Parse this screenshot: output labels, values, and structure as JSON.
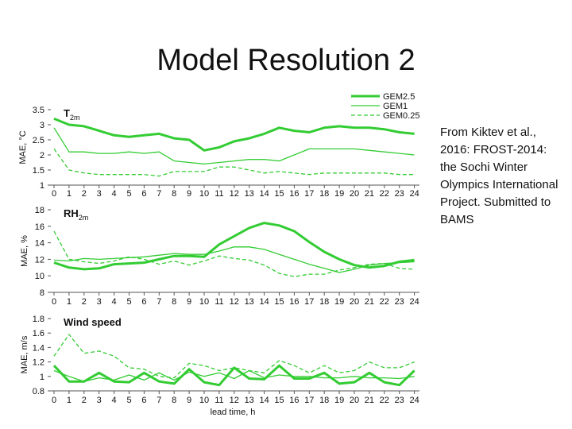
{
  "slide": {
    "title": "Model Resolution 2",
    "caption": "From Kiktev et al., 2016: FROST-2014: the Sochi Winter Olympics International Project. Submitted to BAMS"
  },
  "chart_data": {
    "type": "line",
    "x": [
      0,
      1,
      2,
      3,
      4,
      5,
      6,
      7,
      8,
      9,
      10,
      11,
      12,
      13,
      14,
      15,
      16,
      17,
      18,
      19,
      20,
      21,
      22,
      23,
      24
    ],
    "xlabel": "lead time, h",
    "legend": {
      "placement": "top-right",
      "entries": [
        "GEM2.5",
        "GEM1",
        "GEM0.25"
      ]
    },
    "color": "#33cc33",
    "panels": [
      {
        "title": "T",
        "title_sub": "2m",
        "ylabel": "MAE, °C",
        "ylim": [
          1,
          3.5
        ],
        "yticks": [
          "1",
          "1.5",
          "2",
          "2.5",
          "3",
          "3.5"
        ],
        "series": [
          {
            "name": "GEM2.5",
            "style": "thick",
            "values": [
              3.2,
              3.0,
              2.95,
              2.8,
              2.65,
              2.6,
              2.65,
              2.7,
              2.55,
              2.5,
              2.15,
              2.25,
              2.45,
              2.55,
              2.7,
              2.9,
              2.8,
              2.75,
              2.9,
              2.95,
              2.9,
              2.9,
              2.85,
              2.75,
              2.7
            ]
          },
          {
            "name": "GEM1",
            "style": "thin",
            "values": [
              2.9,
              2.1,
              2.1,
              2.05,
              2.05,
              2.1,
              2.05,
              2.1,
              1.8,
              1.75,
              1.7,
              1.75,
              1.8,
              1.85,
              1.85,
              1.8,
              2.0,
              2.2,
              2.2,
              2.2,
              2.2,
              2.15,
              2.1,
              2.05,
              2.0
            ]
          },
          {
            "name": "GEM0.25",
            "style": "dashed",
            "values": [
              2.2,
              1.5,
              1.4,
              1.35,
              1.35,
              1.35,
              1.35,
              1.3,
              1.45,
              1.45,
              1.45,
              1.6,
              1.6,
              1.5,
              1.4,
              1.45,
              1.4,
              1.35,
              1.4,
              1.4,
              1.4,
              1.4,
              1.4,
              1.35,
              1.35
            ]
          }
        ]
      },
      {
        "title": "RH",
        "title_sub": "2m",
        "ylabel": "MAE, %",
        "ylim": [
          8,
          18
        ],
        "yticks": [
          "8",
          "10",
          "12",
          "14",
          "16",
          "18"
        ],
        "series": [
          {
            "name": "GEM2.5",
            "style": "thick",
            "values": [
              11.6,
              11.0,
              10.8,
              10.9,
              11.4,
              11.5,
              11.6,
              12.0,
              12.4,
              12.4,
              12.3,
              13.8,
              14.8,
              15.8,
              16.4,
              16.1,
              15.4,
              14.1,
              12.9,
              12.0,
              11.3,
              11.0,
              11.2,
              11.7,
              11.9
            ]
          },
          {
            "name": "GEM1",
            "style": "thin",
            "values": [
              11.9,
              11.8,
              12.1,
              12.0,
              12.1,
              12.2,
              12.3,
              12.5,
              12.7,
              12.6,
              12.6,
              13.0,
              13.5,
              13.5,
              13.2,
              12.6,
              12.0,
              11.4,
              10.9,
              10.4,
              10.8,
              11.3,
              11.5,
              11.6,
              11.7
            ]
          },
          {
            "name": "GEM0.25",
            "style": "dashed",
            "values": [
              15.4,
              12.0,
              11.7,
              11.5,
              11.8,
              12.3,
              12.0,
              11.4,
              11.8,
              11.3,
              11.8,
              12.4,
              12.1,
              11.9,
              11.3,
              10.3,
              9.9,
              10.2,
              10.2,
              10.7,
              11.0,
              11.4,
              11.5,
              10.9,
              10.8
            ]
          }
        ]
      },
      {
        "title": "Wind speed",
        "title_sub": "",
        "ylabel": "MAE, m/s",
        "ylim": [
          0.8,
          1.8
        ],
        "yticks": [
          "0.8",
          "1",
          "1.2",
          "1.4",
          "1.6",
          "1.8"
        ],
        "series": [
          {
            "name": "GEM2.5",
            "style": "thick",
            "values": [
              1.15,
              0.93,
              0.93,
              1.05,
              0.93,
              0.92,
              1.05,
              0.93,
              0.9,
              1.1,
              0.92,
              0.88,
              1.12,
              0.97,
              0.96,
              1.15,
              0.97,
              0.97,
              1.05,
              0.9,
              0.92,
              1.05,
              0.92,
              0.88,
              1.08
            ]
          },
          {
            "name": "GEM1",
            "style": "thin",
            "values": [
              1.08,
              1.0,
              0.93,
              0.98,
              0.95,
              1.02,
              0.95,
              1.05,
              0.95,
              1.06,
              1.0,
              1.05,
              0.97,
              1.08,
              0.98,
              1.02,
              1.0,
              1.0,
              0.98,
              0.98,
              1.0,
              0.98,
              0.98,
              0.97,
              1.0
            ]
          },
          {
            "name": "GEM0.25",
            "style": "dashed",
            "values": [
              1.28,
              1.58,
              1.32,
              1.35,
              1.28,
              1.12,
              1.1,
              1.0,
              0.98,
              1.18,
              1.15,
              1.08,
              1.12,
              1.08,
              1.05,
              1.22,
              1.15,
              1.05,
              1.15,
              1.05,
              1.08,
              1.2,
              1.12,
              1.12,
              1.2
            ]
          }
        ]
      }
    ]
  }
}
